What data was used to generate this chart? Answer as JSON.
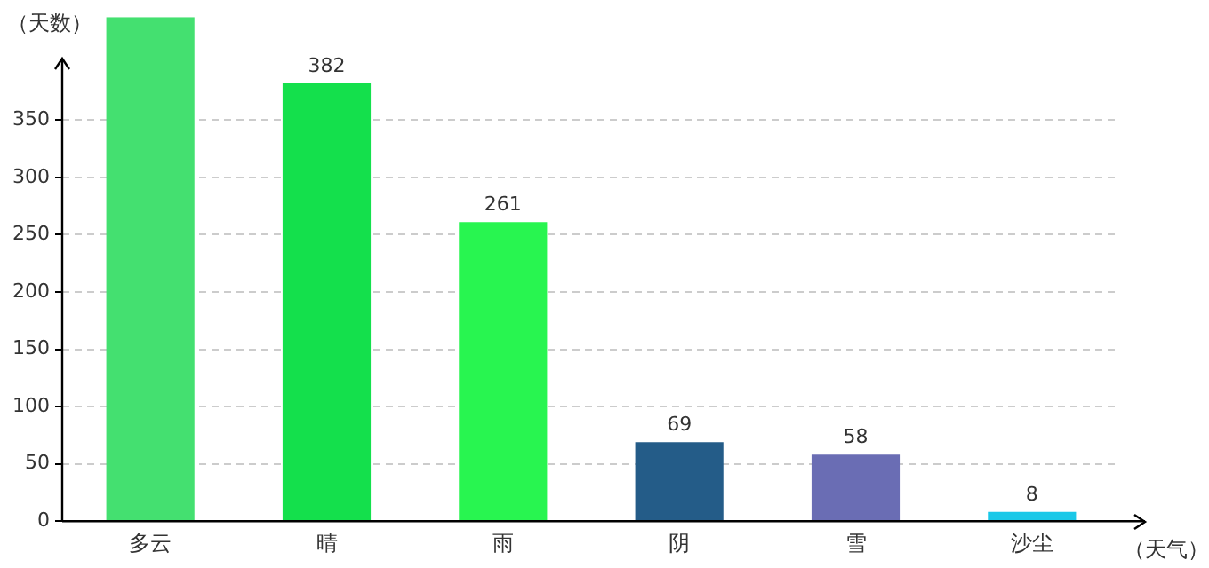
{
  "chart_data": {
    "type": "bar",
    "xlabel": "（天气）",
    "ylabel": "（天数）",
    "categories": [
      "多云",
      "晴",
      "雨",
      "阴",
      "雪",
      "沙尘"
    ],
    "values": [
      440,
      382,
      261,
      69,
      58,
      8
    ],
    "colors": [
      "#44e070",
      "#14e04c",
      "#28f550",
      "#245c88",
      "#6a6db4",
      "#1ac8e8"
    ],
    "value_labels": [
      null,
      "382",
      "261",
      "69",
      "58",
      "8"
    ],
    "ylim": [
      0,
      440
    ],
    "yticks": [
      0,
      50,
      100,
      150,
      200,
      250,
      300,
      350
    ],
    "grid": "y",
    "legend": false
  }
}
